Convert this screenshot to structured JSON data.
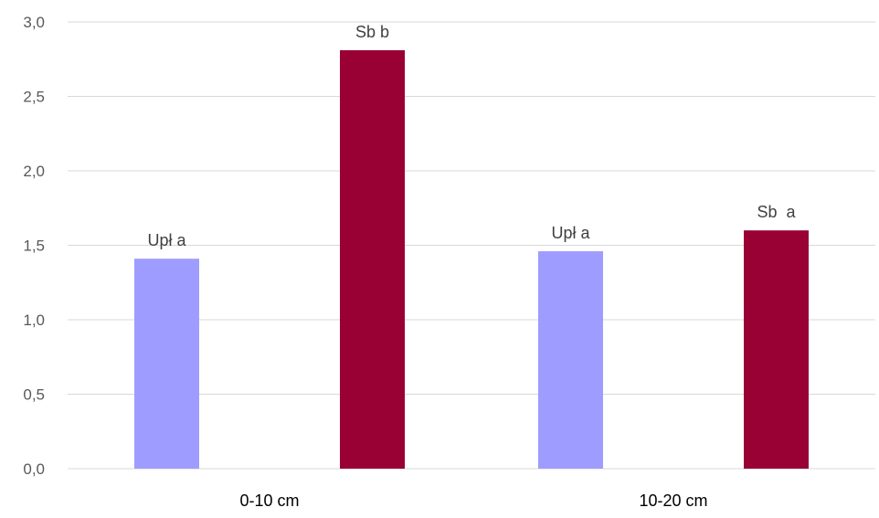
{
  "chart_data": {
    "type": "bar",
    "categories": [
      "0-10 cm",
      "10-20 cm"
    ],
    "series": [
      {
        "color": "#9e9dff",
        "values": [
          1.41,
          1.46
        ],
        "labels": [
          "Upł a",
          "Upł a"
        ]
      },
      {
        "color": "#990033",
        "values": [
          2.81,
          1.6
        ],
        "labels": [
          "Sb b",
          "Sb  a"
        ]
      }
    ],
    "ylim": [
      0,
      3.0
    ],
    "yticks": [
      "0,0",
      "0,5",
      "1,0",
      "1,5",
      "2,0",
      "2,5",
      "3,0"
    ],
    "grid": true,
    "legend": "none"
  }
}
